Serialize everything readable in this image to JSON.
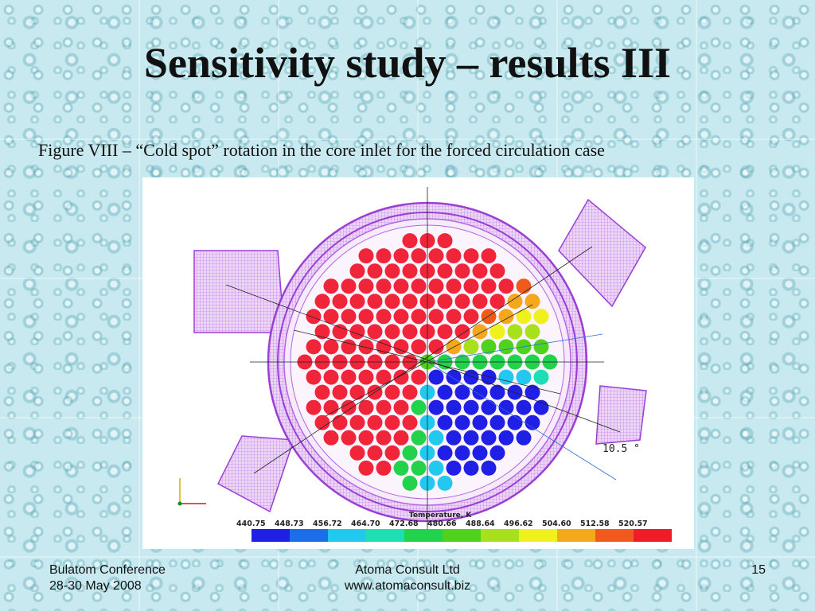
{
  "slide": {
    "title": "Sensitivity study – results III",
    "caption": "Figure VIII – “Cold spot” rotation in the core inlet for the forced circulation case"
  },
  "figure": {
    "angle_label": "10.5 °",
    "legend_title": "Temperature, K",
    "legend_values": [
      "440.75",
      "448.73",
      "456.72",
      "464.70",
      "472.68",
      "480.66",
      "488.64",
      "496.62",
      "504.60",
      "512.58",
      "520.57"
    ],
    "legend_colors": [
      "#1f1fe6",
      "#1a6fe8",
      "#22c8f0",
      "#1ce0b4",
      "#21d24a",
      "#4fd21e",
      "#a8e01c",
      "#f0f01c",
      "#f5a81c",
      "#f05a1c",
      "#f01c2a"
    ],
    "colors": {
      "hot": "#f0253a",
      "cold": "#2a2adf",
      "mesh": "#b565e3",
      "mesh_dark": "#9a3fd4"
    }
  },
  "footer": {
    "left_line1": "Bulatom Conference",
    "left_line2": "28-30 May 2008",
    "center_line1": "Atoma Consult Ltd",
    "center_line2": "www.atomaconsult.biz",
    "page_number": "15"
  }
}
